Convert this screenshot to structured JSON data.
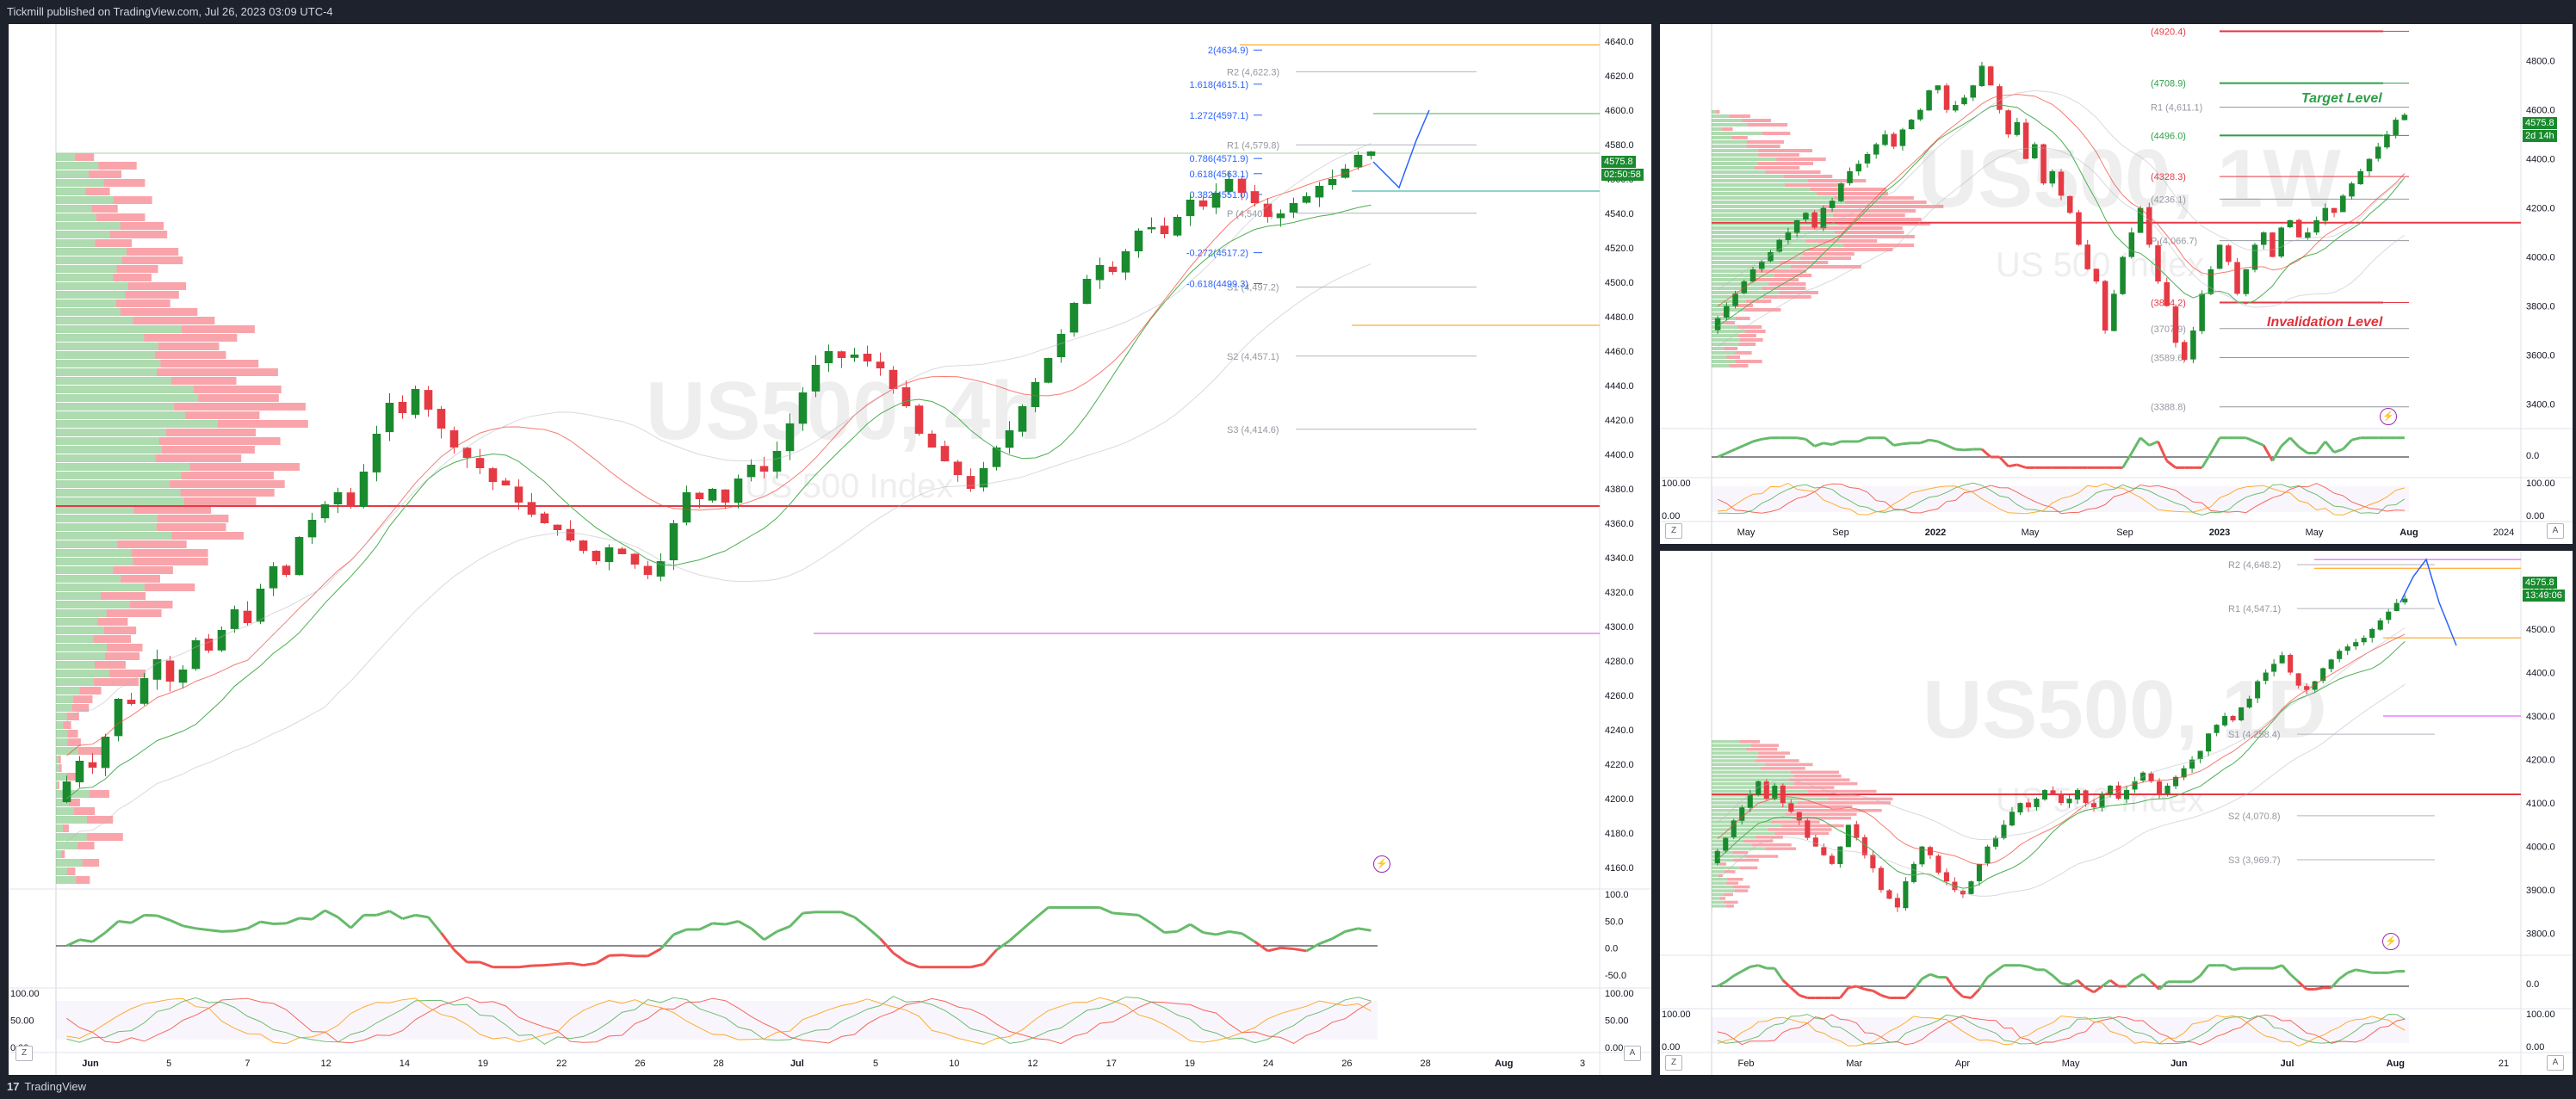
{
  "header": {
    "text": "Tickmill published on TradingView.com, Jul 26, 2023 03:09 UTC-4"
  },
  "footer": {
    "logo": "17",
    "brand": "TradingView"
  },
  "colors": {
    "up": "#1a8a2e",
    "down": "#e53a44",
    "bg": "#1e222d",
    "pivot": "#787b86",
    "fib": "#2962ff"
  },
  "chart_data": [
    {
      "type": "candlestick",
      "symbol_watermark": "US500, 4h",
      "subtitle_watermark": "US 500 Index",
      "price_axis": [
        "4640.0",
        "4620.0",
        "4600.0",
        "4580.0",
        "4560.0",
        "4540.0",
        "4520.0",
        "4500.0",
        "4480.0",
        "4460.0",
        "4440.0",
        "4420.0",
        "4400.0",
        "4380.0",
        "4360.0",
        "4340.0",
        "4320.0",
        "4300.0",
        "4280.0",
        "4260.0",
        "4240.0",
        "4220.0",
        "4200.0",
        "4180.0",
        "4160.0"
      ],
      "ylim": [
        4150,
        4650
      ],
      "time_axis": [
        "Jun",
        "5",
        "7",
        "12",
        "14",
        "19",
        "22",
        "26",
        "28",
        "Jul",
        "5",
        "10",
        "12",
        "17",
        "19",
        "24",
        "26",
        "28",
        "Aug",
        "3"
      ],
      "last_price": "4575.8",
      "countdown": "02:50:58",
      "fib_labels": [
        "2(4634.9)",
        "1.618(4615.1)",
        "1.272(4597.1)",
        "0.786(4571.9)",
        "0.618(4563.1)",
        "0.382(4551.0)",
        "-0.272(4517.2)",
        "-0.618(4499.3)"
      ],
      "fib_values": [
        4634.9,
        4615.1,
        4597.1,
        4571.9,
        4563.1,
        4551.0,
        4517.2,
        4499.3
      ],
      "pivot_labels": [
        "R2 (4,622.3)",
        "R1 (4,579.8)",
        "P (4,540.1)",
        "S1 (4,497.2)",
        "S2 (4,457.1)",
        "S3 (4,414.6)"
      ],
      "pivot_values": [
        4622.3,
        4579.8,
        4540.1,
        4497.2,
        4457.1,
        4414.6
      ],
      "levels": {
        "red_support": 4370,
        "magenta": 4296,
        "orange_top": 4638,
        "orange_mid": 4475,
        "green_target": 4598,
        "teal": 4553
      },
      "rsi_axis": [
        "100.0",
        "50.0",
        "0.0",
        "-50.0"
      ],
      "stoch_axis": [
        "100.00",
        "50.00",
        "0.00"
      ],
      "closes": [
        4210,
        4222,
        4218,
        4236,
        4258,
        4255,
        4270,
        4281,
        4268,
        4275,
        4292,
        4286,
        4298,
        4310,
        4302,
        4322,
        4335,
        4330,
        4352,
        4362,
        4371,
        4378,
        4370,
        4390,
        4412,
        4430,
        4424,
        4438,
        4426,
        4415,
        4404,
        4398,
        4392,
        4384,
        4382,
        4372,
        4365,
        4360,
        4356,
        4350,
        4344,
        4338,
        4346,
        4342,
        4336,
        4330,
        4338,
        4360,
        4378,
        4374,
        4380,
        4372,
        4386,
        4394,
        4390,
        4402,
        4418,
        4436,
        4452,
        4460,
        4456,
        4458,
        4454,
        4450,
        4438,
        4428,
        4412,
        4404,
        4396,
        4388,
        4380,
        4392,
        4404,
        4414,
        4428,
        4442,
        4456,
        4470,
        4488,
        4502,
        4510,
        4506,
        4518,
        4530,
        4532,
        4528,
        4538,
        4548,
        4544,
        4552,
        4560,
        4552,
        4546,
        4538,
        4540,
        4546,
        4550,
        4556,
        4560,
        4566,
        4574,
        4576
      ]
    },
    {
      "type": "candlestick",
      "symbol_watermark": "US500, 1W",
      "subtitle_watermark": "US 500 Index",
      "price_axis": [
        "4800.0",
        "4600.0",
        "4400.0",
        "4200.0",
        "4000.0",
        "3800.0",
        "3600.0",
        "3400.0"
      ],
      "ylim": [
        3300,
        4950
      ],
      "time_axis": [
        "May",
        "Sep",
        "2022",
        "May",
        "Sep",
        "2023",
        "May",
        "Aug",
        "2024"
      ],
      "last_price": "4575.8",
      "countdown": "2d 14h",
      "pivot_labels": [
        "(4920.4)",
        "(4708.9)",
        "R1 (4,611.1)",
        "(4496.0)",
        "(4328.3)",
        "(4236.1)",
        "P (4,066.7)",
        "(3814.2)",
        "(3707.9)",
        "(3589.6)",
        "(3388.8)"
      ],
      "pivot_values": [
        4920.4,
        4708.9,
        4611.1,
        4496.0,
        4328.3,
        4236.1,
        4066.7,
        3814.2,
        3707.9,
        3589.6,
        3388.8
      ],
      "notes": [
        "Target Level",
        "Invalidation Level"
      ],
      "rsi_axis": [
        "0.0"
      ],
      "stoch_axis": [
        "100.00",
        "0.00"
      ],
      "closes": [
        3750,
        3800,
        3850,
        3900,
        3950,
        3980,
        4020,
        4070,
        4100,
        4150,
        4180,
        4120,
        4200,
        4230,
        4300,
        4350,
        4380,
        4420,
        4460,
        4500,
        4450,
        4520,
        4560,
        4600,
        4680,
        4700,
        4600,
        4620,
        4650,
        4700,
        4780,
        4700,
        4600,
        4500,
        4550,
        4400,
        4460,
        4300,
        4350,
        4250,
        4180,
        4050,
        3950,
        3900,
        3700,
        3850,
        4000,
        4100,
        4200,
        4050,
        3900,
        3800,
        3650,
        3580,
        3700,
        3850,
        3950,
        4050,
        3980,
        3850,
        3950,
        4050,
        4100,
        4000,
        4120,
        4150,
        4080,
        4100,
        4150,
        4200,
        4180,
        4250,
        4300,
        4350,
        4400,
        4450,
        4500,
        4560,
        4580
      ]
    },
    {
      "type": "candlestick",
      "symbol_watermark": "US500, 1D",
      "subtitle_watermark": "US 500 Index",
      "price_axis": [
        "4600.0",
        "4500.0",
        "4400.0",
        "4300.0",
        "4200.0",
        "4100.0",
        "4000.0",
        "3900.0",
        "3800.0"
      ],
      "ylim": [
        3750,
        4680
      ],
      "time_axis": [
        "Feb",
        "Mar",
        "Apr",
        "May",
        "Jun",
        "Jul",
        "Aug",
        "21"
      ],
      "last_price": "4575.8",
      "countdown": "13:49:06",
      "pivot_labels": [
        "R2 (4,648.2)",
        "R1 (4,547.1)",
        "S1 (4,258.4)",
        "S2 (4,070.8)",
        "S3 (3,969.7)"
      ],
      "pivot_values": [
        4648.2,
        4547.1,
        4258.4,
        4070.8,
        3969.7
      ],
      "rsi_axis": [
        "0.0"
      ],
      "stoch_axis": [
        "100.00",
        "0.00"
      ],
      "closes": [
        3990,
        4020,
        4060,
        4090,
        4120,
        4150,
        4110,
        4140,
        4100,
        4080,
        4060,
        4020,
        4000,
        3980,
        3960,
        4000,
        4050,
        4020,
        3980,
        3950,
        3900,
        3880,
        3860,
        3920,
        3960,
        4000,
        3980,
        3940,
        3920,
        3900,
        3890,
        3920,
        3960,
        4000,
        4020,
        4050,
        4080,
        4100,
        4090,
        4110,
        4130,
        4120,
        4100,
        4110,
        4130,
        4100,
        4090,
        4120,
        4140,
        4110,
        4130,
        4150,
        4170,
        4150,
        4120,
        4140,
        4160,
        4180,
        4200,
        4220,
        4260,
        4280,
        4300,
        4290,
        4320,
        4340,
        4380,
        4400,
        4420,
        4440,
        4400,
        4370,
        4360,
        4380,
        4410,
        4430,
        4450,
        4460,
        4470,
        4480,
        4500,
        4520,
        4540,
        4560,
        4570
      ]
    }
  ]
}
